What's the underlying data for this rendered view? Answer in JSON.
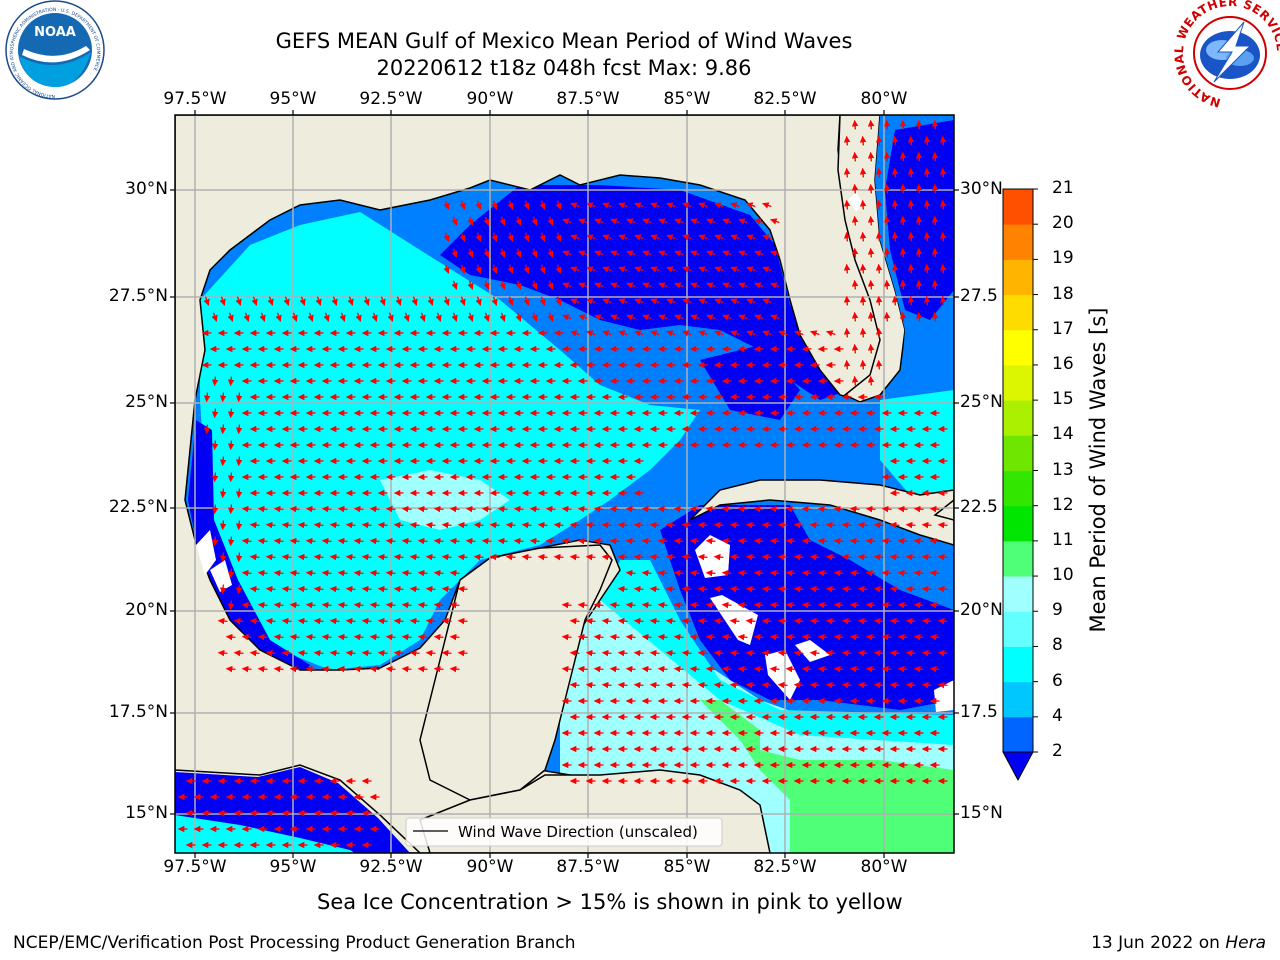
{
  "header": {
    "title_line1": "GEFS MEAN Gulf of Mexico Mean Period of Wind Waves",
    "title_line2": "20220612 t18z 048h fcst   Max: 9.86"
  },
  "logos": {
    "noaa_text": "NOAA",
    "noaa_ring_text": "NATIONAL OCEANIC AND ATMOSPHERIC ADMINISTRATION · U.S. DEPARTMENT OF COMMERCE",
    "nws_ring_text": "NATIONAL WEATHER SERVICE"
  },
  "map": {
    "lon_labels": [
      "97.5°W",
      "95°W",
      "92.5°W",
      "90°W",
      "87.5°W",
      "85°W",
      "82.5°W",
      "80°W"
    ],
    "lat_labels_left": [
      "30°N",
      "27.5°N",
      "25°N",
      "22.5°N",
      "20°N",
      "17.5°N",
      "15°N"
    ],
    "lat_labels_right": [
      "30°N",
      "27.5",
      "25°N",
      "22.5",
      "20°N",
      "17.5",
      "15°N"
    ],
    "legend_label": "Wind Wave Direction (unscaled)",
    "colors": {
      "land": "#eeecdc",
      "level_2_4": "#0000f5",
      "level_4_6": "#0080ff",
      "level_6_8": "#00ffff",
      "level_8_9": "#a0ffff",
      "level_9_10": "#50ff78",
      "arrow": "#ff0000",
      "grid": "#b0b0b0"
    }
  },
  "colorbar": {
    "label": "Mean Period of Wind Waves [s]",
    "ticks": [
      "2",
      "4",
      "6",
      "8",
      "9",
      "10",
      "11",
      "12",
      "13",
      "14",
      "15",
      "16",
      "17",
      "18",
      "19",
      "20",
      "21"
    ],
    "colors": [
      "#0064ff",
      "#00c8ff",
      "#00ffff",
      "#64ffff",
      "#a0ffff",
      "#50ff78",
      "#00e600",
      "#32e600",
      "#6ee600",
      "#aaf000",
      "#dcf500",
      "#ffff00",
      "#ffdc00",
      "#ffb400",
      "#ff8200",
      "#ff5000",
      "#ff1e00"
    ],
    "extend_color": "#0000f5"
  },
  "footer": {
    "note": "Sea Ice Concentration > 15% is shown in pink to yellow",
    "credit": "NCEP/EMC/Verification Post Processing Product Generation Branch",
    "date": "13 Jun 2022 on ",
    "machine": "Hera"
  }
}
